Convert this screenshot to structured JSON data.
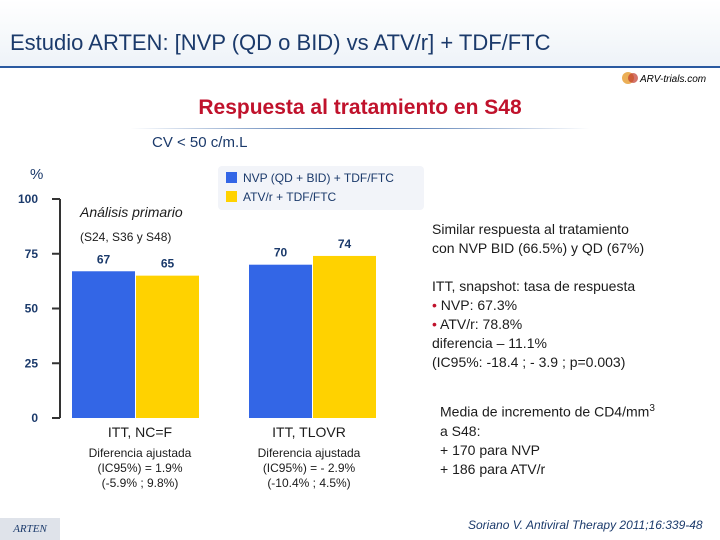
{
  "header": {
    "title": "Estudio ARTEN: [NVP (QD o BID) vs ATV/r] + TDF/FTC",
    "logo_text": "ARV-trials.com"
  },
  "subtitle": "Respuesta al tratamiento en S48",
  "cv_label": "CV < 50 c/m.L",
  "colors": {
    "nvp": "#3366e6",
    "atv": "#ffd200",
    "title": "#1b3a6b",
    "accent": "#c0122c"
  },
  "chart_data": {
    "type": "bar",
    "title": "Respuesta al tratamiento en S48",
    "ylabel": "%",
    "ylim": [
      0,
      100
    ],
    "yticks": [
      0,
      25,
      50,
      75,
      100
    ],
    "grid": false,
    "legend_position": "top",
    "groups": [
      "ITT, NC=F",
      "ITT, TLOVR"
    ],
    "series": [
      {
        "name": "NVP (QD + BID) + TDF/FTC",
        "color": "#3366e6",
        "values": [
          67,
          70
        ],
        "value_labels": [
          "67",
          "70"
        ]
      },
      {
        "name": "ATV/r + TDF/FTC",
        "color": "#ffd200",
        "values": [
          65,
          74
        ],
        "value_labels": [
          "65",
          "74"
        ]
      }
    ]
  },
  "analysis": {
    "label": "Análisis primario",
    "sub_label": "(S24, S36 y S48)"
  },
  "group_details": [
    {
      "label": "ITT, NC=F",
      "line1": "Diferencia ajustada",
      "line2": "(IC95%) = 1.9%",
      "line3": "(-5.9% ; 9.8%)"
    },
    {
      "label": "ITT, TLOVR",
      "line1": "Diferencia ajustada",
      "line2": "(IC95%) = - 2.9%",
      "line3": "(-10.4% ; 4.5%)"
    }
  ],
  "notes": {
    "similar_line1": "Similar respuesta al tratamiento",
    "similar_line2": "con NVP BID (66.5%) y QD (67%)",
    "itt_line1": "ITT, snapshot: tasa de respuesta",
    "bullet_char": "•",
    "itt_nvp": "NVP: 67.3%",
    "itt_atv": "ATV/r: 78.8%",
    "itt_diff": "diferencia – 11.1%",
    "itt_ci": "(IC95%: -18.4 ; - 3.9 ; p=0.003)",
    "cd4_line1": "Media de incremento de CD4/mm",
    "cd4_sup": "3",
    "cd4_line2": "a S48:",
    "cd4_nvp": "+ 170 para NVP",
    "cd4_atv": "+ 186 para ATV/r"
  },
  "footer": {
    "study": "ARTEN",
    "citation": "Soriano V. Antiviral Therapy 2011;16:339-48"
  }
}
